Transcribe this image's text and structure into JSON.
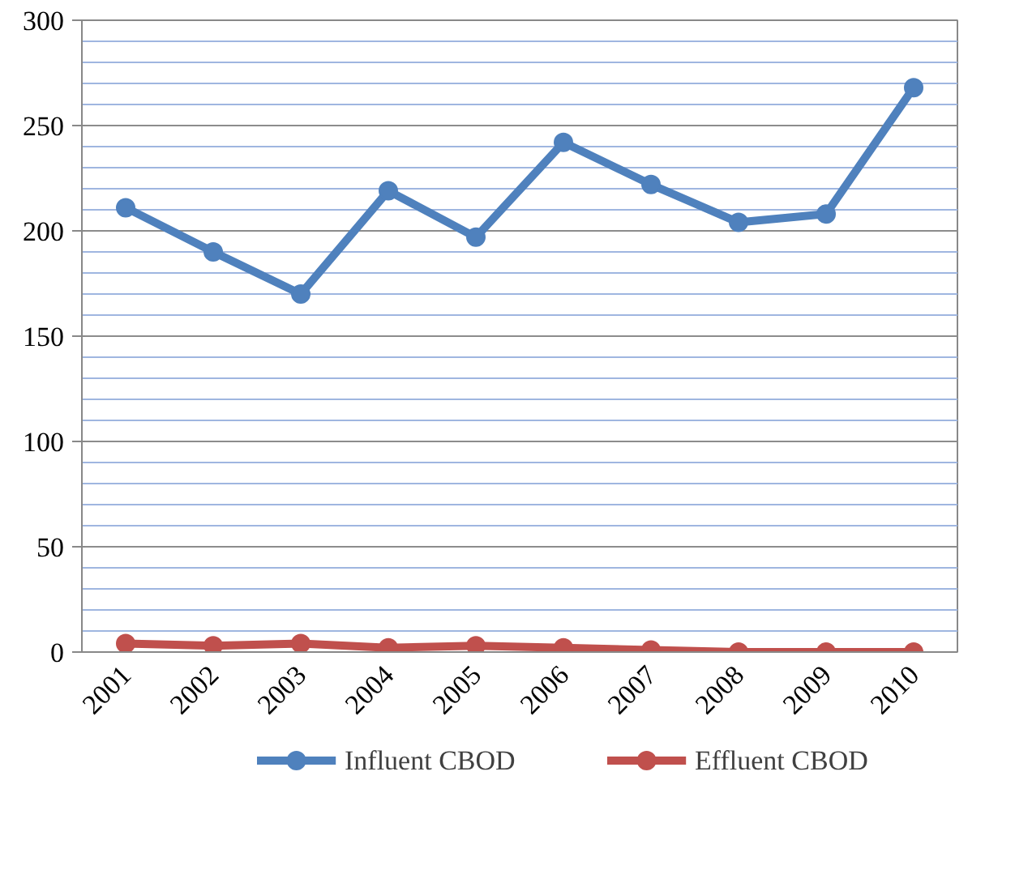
{
  "chart_data": {
    "type": "line",
    "categories": [
      "2001",
      "2002",
      "2003",
      "2004",
      "2005",
      "2006",
      "2007",
      "2008",
      "2009",
      "2010"
    ],
    "series": [
      {
        "name": "Influent CBOD",
        "color": "#4f81bd",
        "values": [
          211,
          190,
          170,
          219,
          197,
          242,
          222,
          204,
          208,
          268
        ]
      },
      {
        "name": "Effluent CBOD",
        "color": "#c0504d",
        "values": [
          4,
          3,
          4,
          2,
          3,
          2,
          1,
          0,
          0,
          0
        ]
      }
    ],
    "ylim": [
      0,
      300
    ],
    "yticks": [
      0,
      {
        "value": 10,
        "label": null
      },
      {
        "value": 20,
        "label": null
      },
      {
        "value": 30,
        "label": null
      },
      {
        "value": 40,
        "label": null
      },
      50,
      {
        "value": 60,
        "label": null
      },
      {
        "value": 70,
        "label": null
      },
      {
        "value": 80,
        "label": null
      },
      {
        "value": 90,
        "label": null
      },
      100,
      {
        "value": 110,
        "label": null
      },
      {
        "value": 120,
        "label": null
      },
      {
        "value": 130,
        "label": null
      },
      {
        "value": 140,
        "label": null
      },
      150,
      {
        "value": 160,
        "label": null
      },
      {
        "value": 170,
        "label": null
      },
      {
        "value": 180,
        "label": null
      },
      {
        "value": 190,
        "label": null
      },
      200,
      {
        "value": 210,
        "label": null
      },
      {
        "value": 220,
        "label": null
      },
      {
        "value": 230,
        "label": null
      },
      {
        "value": 240,
        "label": null
      },
      250,
      {
        "value": 260,
        "label": null
      },
      {
        "value": 270,
        "label": null
      },
      {
        "value": 280,
        "label": null
      },
      {
        "value": 290,
        "label": null
      },
      300
    ],
    "grid": "y",
    "legend": "bottom",
    "marker": "circle",
    "line_style": "solid"
  }
}
